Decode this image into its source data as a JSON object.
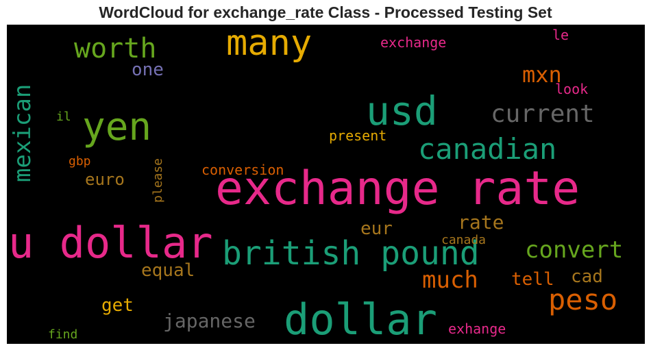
{
  "title": "WordCloud for exchange_rate Class - Processed Testing Set",
  "words": [
    {
      "text": "exchange rate",
      "color": "#e7298a"
    },
    {
      "text": "u dollar",
      "color": "#e7298a"
    },
    {
      "text": "dollar",
      "color": "#1b9e77"
    },
    {
      "text": "usd",
      "color": "#1b9e77"
    },
    {
      "text": "british pound",
      "color": "#1b9e77"
    },
    {
      "text": "many",
      "color": "#e6ab02"
    },
    {
      "text": "yen",
      "color": "#66a61e"
    },
    {
      "text": "canadian",
      "color": "#1b9e77"
    },
    {
      "text": "peso",
      "color": "#d95f02"
    },
    {
      "text": "current",
      "color": "#666666"
    },
    {
      "text": "mexican",
      "color": "#1b9e77"
    },
    {
      "text": "worth",
      "color": "#66a61e"
    },
    {
      "text": "convert",
      "color": "#66a61e"
    },
    {
      "text": "much",
      "color": "#d95f02"
    },
    {
      "text": "mxn",
      "color": "#d95f02"
    },
    {
      "text": "japanese",
      "color": "#666666"
    },
    {
      "text": "rate",
      "color": "#a6761d"
    },
    {
      "text": "equal",
      "color": "#a6761d"
    },
    {
      "text": "one",
      "color": "#7570b3"
    },
    {
      "text": "get",
      "color": "#e6ab02"
    },
    {
      "text": "cad",
      "color": "#a6761d"
    },
    {
      "text": "tell",
      "color": "#d95f02"
    },
    {
      "text": "eur",
      "color": "#a6761d"
    },
    {
      "text": "euro",
      "color": "#a6761d"
    },
    {
      "text": "conversion",
      "color": "#d95f02"
    },
    {
      "text": "present",
      "color": "#e6ab02"
    },
    {
      "text": "exchange",
      "color": "#e7298a"
    },
    {
      "text": "look",
      "color": "#e7298a"
    },
    {
      "text": "please",
      "color": "#a6761d"
    },
    {
      "text": "canada",
      "color": "#a6761d"
    },
    {
      "text": "exhange",
      "color": "#e7298a"
    },
    {
      "text": "find",
      "color": "#66a61e"
    },
    {
      "text": "gbp",
      "color": "#d95f02"
    },
    {
      "text": "il",
      "color": "#66a61e"
    },
    {
      "text": "le",
      "color": "#e7298a"
    }
  ]
}
